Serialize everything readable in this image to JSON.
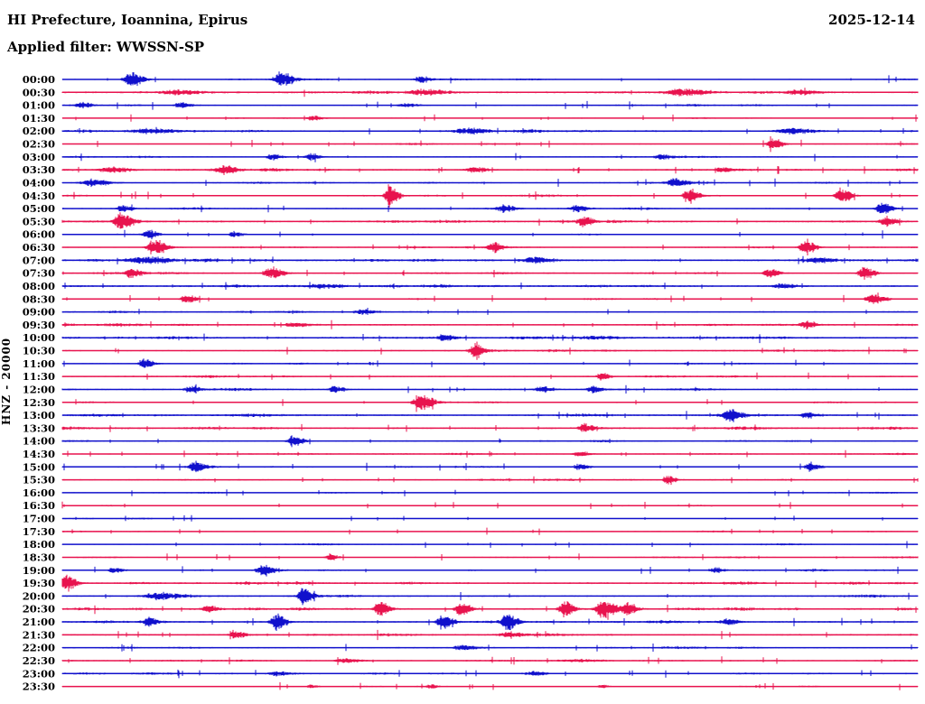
{
  "header": {
    "title": "HI Prefecture, Ioannina, Epirus",
    "date": "2025-12-14",
    "filter_label": "Applied filter: WWSSN-SP"
  },
  "axis": {
    "channel_scale_label": "HNZ - 20000"
  },
  "colors": {
    "trace_blue": "#1010cc",
    "trace_red": "#e8134e",
    "text": "#000000",
    "background": "#ffffff"
  },
  "chart_data": {
    "type": "line",
    "subtype": "helicorder-seismogram",
    "title": "HI Prefecture, Ioannina, Epirus",
    "date": "2025-12-14",
    "filter": "WWSSN-SP",
    "channel": "HNZ",
    "scale": "20000",
    "minutes_per_row": 30,
    "legend_position": "none",
    "grid": false,
    "row_label_axis": "time of day (UTC), one 30-minute trace per row, alternating blue/red",
    "rows": [
      {
        "time": "00:00",
        "color": "blue",
        "noise": 1.1,
        "events": [
          {
            "pos": 0.08,
            "amp": 8,
            "w": 5
          },
          {
            "pos": 0.255,
            "amp": 8,
            "w": 5
          },
          {
            "pos": 0.418,
            "amp": 4,
            "w": 4
          }
        ]
      },
      {
        "time": "00:30",
        "color": "red",
        "noise": 1.9,
        "events": [
          {
            "pos": 0.13,
            "amp": 2.5,
            "w": 9
          },
          {
            "pos": 0.42,
            "amp": 2.5,
            "w": 10
          },
          {
            "pos": 0.72,
            "amp": 2.5,
            "w": 10
          },
          {
            "pos": 0.86,
            "amp": 2.5,
            "w": 8
          }
        ]
      },
      {
        "time": "01:00",
        "color": "blue",
        "noise": 1.1,
        "events": [
          {
            "pos": 0.022,
            "amp": 3.5,
            "w": 4
          },
          {
            "pos": 0.138,
            "amp": 3.5,
            "w": 4
          },
          {
            "pos": 0.4,
            "amp": 2,
            "w": 6
          }
        ]
      },
      {
        "time": "01:30",
        "color": "red",
        "noise": 0.8,
        "events": [
          {
            "pos": 0.292,
            "amp": 3,
            "w": 4
          }
        ]
      },
      {
        "time": "02:00",
        "color": "blue",
        "noise": 1.7,
        "events": [
          {
            "pos": 0.1,
            "amp": 2.5,
            "w": 12
          },
          {
            "pos": 0.47,
            "amp": 2.5,
            "w": 8
          },
          {
            "pos": 0.85,
            "amp": 3,
            "w": 10
          }
        ]
      },
      {
        "time": "02:30",
        "color": "red",
        "noise": 1.0,
        "events": [
          {
            "pos": 0.83,
            "amp": 7,
            "w": 4
          }
        ]
      },
      {
        "time": "03:00",
        "color": "blue",
        "noise": 1.1,
        "events": [
          {
            "pos": 0.245,
            "amp": 3.5,
            "w": 4
          },
          {
            "pos": 0.29,
            "amp": 3.5,
            "w": 4
          },
          {
            "pos": 0.7,
            "amp": 2.5,
            "w": 5
          }
        ]
      },
      {
        "time": "03:30",
        "color": "red",
        "noise": 1.6,
        "events": [
          {
            "pos": 0.055,
            "amp": 3,
            "w": 8
          },
          {
            "pos": 0.19,
            "amp": 3.5,
            "w": 5
          },
          {
            "pos": 0.48,
            "amp": 3,
            "w": 5
          },
          {
            "pos": 0.77,
            "amp": 3,
            "w": 4
          }
        ]
      },
      {
        "time": "04:00",
        "color": "blue",
        "noise": 1.2,
        "events": [
          {
            "pos": 0.034,
            "amp": 3.5,
            "w": 8
          },
          {
            "pos": 0.716,
            "amp": 5,
            "w": 5
          }
        ]
      },
      {
        "time": "04:30",
        "color": "red",
        "noise": 1.3,
        "events": [
          {
            "pos": 0.382,
            "amp": 12,
            "w": 3.5
          },
          {
            "pos": 0.732,
            "amp": 8,
            "w": 4
          },
          {
            "pos": 0.91,
            "amp": 8,
            "w": 4
          }
        ]
      },
      {
        "time": "05:00",
        "color": "blue",
        "noise": 1.2,
        "events": [
          {
            "pos": 0.07,
            "amp": 4,
            "w": 4
          },
          {
            "pos": 0.515,
            "amp": 3.5,
            "w": 5
          },
          {
            "pos": 0.6,
            "amp": 3.5,
            "w": 5
          },
          {
            "pos": 0.958,
            "amp": 7,
            "w": 4
          }
        ]
      },
      {
        "time": "05:30",
        "color": "red",
        "noise": 1.8,
        "events": [
          {
            "pos": 0.068,
            "amp": 9,
            "w": 5
          },
          {
            "pos": 0.608,
            "amp": 6,
            "w": 4
          },
          {
            "pos": 0.962,
            "amp": 5,
            "w": 4
          }
        ]
      },
      {
        "time": "06:00",
        "color": "blue",
        "noise": 0.9,
        "events": [
          {
            "pos": 0.1,
            "amp": 5,
            "w": 4
          },
          {
            "pos": 0.2,
            "amp": 3,
            "w": 4
          }
        ]
      },
      {
        "time": "06:30",
        "color": "red",
        "noise": 1.2,
        "events": [
          {
            "pos": 0.107,
            "amp": 9,
            "w": 5
          },
          {
            "pos": 0.503,
            "amp": 6,
            "w": 4
          },
          {
            "pos": 0.868,
            "amp": 8,
            "w": 4
          }
        ]
      },
      {
        "time": "07:00",
        "color": "blue",
        "noise": 1.9,
        "events": [
          {
            "pos": 0.09,
            "amp": 3,
            "w": 10
          },
          {
            "pos": 0.55,
            "amp": 3,
            "w": 8
          },
          {
            "pos": 0.88,
            "amp": 3,
            "w": 8
          }
        ]
      },
      {
        "time": "07:30",
        "color": "red",
        "noise": 1.4,
        "events": [
          {
            "pos": 0.08,
            "amp": 6,
            "w": 4
          },
          {
            "pos": 0.243,
            "amp": 7,
            "w": 5
          },
          {
            "pos": 0.826,
            "amp": 5,
            "w": 4
          },
          {
            "pos": 0.937,
            "amp": 8,
            "w": 4
          }
        ]
      },
      {
        "time": "08:00",
        "color": "blue",
        "noise": 1.7,
        "events": [
          {
            "pos": 0.3,
            "amp": 2.5,
            "w": 8
          },
          {
            "pos": 0.84,
            "amp": 2.5,
            "w": 6
          }
        ]
      },
      {
        "time": "08:30",
        "color": "red",
        "noise": 1.1,
        "events": [
          {
            "pos": 0.145,
            "amp": 5,
            "w": 4
          },
          {
            "pos": 0.947,
            "amp": 6,
            "w": 5
          }
        ]
      },
      {
        "time": "09:00",
        "color": "blue",
        "noise": 1.2,
        "events": [
          {
            "pos": 0.35,
            "amp": 2.5,
            "w": 6
          }
        ]
      },
      {
        "time": "09:30",
        "color": "red",
        "noise": 1.6,
        "events": [
          {
            "pos": 0.27,
            "amp": 2.5,
            "w": 6
          },
          {
            "pos": 0.868,
            "amp": 4,
            "w": 4
          }
        ]
      },
      {
        "time": "10:00",
        "color": "blue",
        "noise": 2.0,
        "events": [
          {
            "pos": 0.445,
            "amp": 4,
            "w": 4
          }
        ]
      },
      {
        "time": "10:30",
        "color": "red",
        "noise": 1.3,
        "events": [
          {
            "pos": 0.482,
            "amp": 8,
            "w": 4
          }
        ]
      },
      {
        "time": "11:00",
        "color": "blue",
        "noise": 0.9,
        "events": [
          {
            "pos": 0.096,
            "amp": 5,
            "w": 4
          }
        ]
      },
      {
        "time": "11:30",
        "color": "red",
        "noise": 1.3,
        "events": [
          {
            "pos": 0.63,
            "amp": 5,
            "w": 3
          }
        ]
      },
      {
        "time": "12:00",
        "color": "blue",
        "noise": 1.3,
        "events": [
          {
            "pos": 0.15,
            "amp": 3.5,
            "w": 4
          },
          {
            "pos": 0.318,
            "amp": 3.5,
            "w": 4
          },
          {
            "pos": 0.56,
            "amp": 3.5,
            "w": 5
          },
          {
            "pos": 0.62,
            "amp": 3.5,
            "w": 4
          }
        ]
      },
      {
        "time": "12:30",
        "color": "red",
        "noise": 1.2,
        "events": [
          {
            "pos": 0.418,
            "amp": 8,
            "w": 5
          }
        ]
      },
      {
        "time": "13:00",
        "color": "blue",
        "noise": 1.7,
        "events": [
          {
            "pos": 0.778,
            "amp": 6,
            "w": 5
          },
          {
            "pos": 0.87,
            "amp": 3.5,
            "w": 4
          }
        ]
      },
      {
        "time": "13:30",
        "color": "red",
        "noise": 1.6,
        "events": [
          {
            "pos": 0.61,
            "amp": 5,
            "w": 4
          }
        ]
      },
      {
        "time": "14:00",
        "color": "blue",
        "noise": 1.1,
        "events": [
          {
            "pos": 0.27,
            "amp": 6,
            "w": 4
          }
        ]
      },
      {
        "time": "14:30",
        "color": "red",
        "noise": 1.2,
        "events": [
          {
            "pos": 0.604,
            "amp": 3,
            "w": 4
          }
        ]
      },
      {
        "time": "15:00",
        "color": "blue",
        "noise": 1.2,
        "events": [
          {
            "pos": 0.155,
            "amp": 6,
            "w": 4
          },
          {
            "pos": 0.604,
            "amp": 3.5,
            "w": 4
          },
          {
            "pos": 0.874,
            "amp": 5,
            "w": 4
          }
        ]
      },
      {
        "time": "15:30",
        "color": "red",
        "noise": 1.3,
        "events": [
          {
            "pos": 0.708,
            "amp": 5,
            "w": 3
          }
        ]
      },
      {
        "time": "16:00",
        "color": "blue",
        "noise": 0.9,
        "events": []
      },
      {
        "time": "16:30",
        "color": "red",
        "noise": 0.9,
        "events": []
      },
      {
        "time": "17:00",
        "color": "blue",
        "noise": 0.8,
        "events": []
      },
      {
        "time": "17:30",
        "color": "red",
        "noise": 0.9,
        "events": []
      },
      {
        "time": "18:00",
        "color": "blue",
        "noise": 1.0,
        "events": []
      },
      {
        "time": "18:30",
        "color": "red",
        "noise": 1.0,
        "events": [
          {
            "pos": 0.313,
            "amp": 4,
            "w": 3
          }
        ]
      },
      {
        "time": "19:00",
        "color": "blue",
        "noise": 1.2,
        "events": [
          {
            "pos": 0.06,
            "amp": 3,
            "w": 4
          },
          {
            "pos": 0.234,
            "amp": 6,
            "w": 4
          },
          {
            "pos": 0.762,
            "amp": 3,
            "w": 4
          }
        ]
      },
      {
        "time": "19:30",
        "color": "red",
        "noise": 1.7,
        "events": [
          {
            "pos": 0.004,
            "amp": 10,
            "w": 4
          }
        ]
      },
      {
        "time": "20:00",
        "color": "blue",
        "noise": 1.5,
        "events": [
          {
            "pos": 0.11,
            "amp": 3,
            "w": 8
          },
          {
            "pos": 0.282,
            "amp": 9,
            "w": 4
          }
        ]
      },
      {
        "time": "20:30",
        "color": "red",
        "noise": 1.7,
        "events": [
          {
            "pos": 0.17,
            "amp": 4,
            "w": 4
          },
          {
            "pos": 0.371,
            "amp": 8,
            "w": 4
          },
          {
            "pos": 0.466,
            "amp": 8,
            "w": 4
          },
          {
            "pos": 0.587,
            "amp": 9,
            "w": 4
          },
          {
            "pos": 0.632,
            "amp": 11,
            "w": 5
          },
          {
            "pos": 0.66,
            "amp": 7,
            "w": 4
          }
        ]
      },
      {
        "time": "21:00",
        "color": "blue",
        "noise": 1.6,
        "events": [
          {
            "pos": 0.1,
            "amp": 5,
            "w": 3
          },
          {
            "pos": 0.25,
            "amp": 9,
            "w": 4
          },
          {
            "pos": 0.445,
            "amp": 9,
            "w": 4
          },
          {
            "pos": 0.52,
            "amp": 9,
            "w": 4
          },
          {
            "pos": 0.778,
            "amp": 4,
            "w": 4
          }
        ]
      },
      {
        "time": "21:30",
        "color": "red",
        "noise": 1.6,
        "events": [
          {
            "pos": 0.202,
            "amp": 4,
            "w": 4
          },
          {
            "pos": 0.52,
            "amp": 3,
            "w": 6
          }
        ]
      },
      {
        "time": "22:00",
        "color": "blue",
        "noise": 1.3,
        "events": [
          {
            "pos": 0.466,
            "amp": 3,
            "w": 5
          }
        ]
      },
      {
        "time": "22:30",
        "color": "red",
        "noise": 1.3,
        "events": [
          {
            "pos": 0.33,
            "amp": 2.5,
            "w": 6
          }
        ]
      },
      {
        "time": "23:00",
        "color": "blue",
        "noise": 1.3,
        "events": [
          {
            "pos": 0.25,
            "amp": 2.5,
            "w": 6
          },
          {
            "pos": 0.55,
            "amp": 2.5,
            "w": 6
          }
        ]
      },
      {
        "time": "23:30",
        "color": "red",
        "noise": 0.8,
        "events": [
          {
            "pos": 0.29,
            "amp": 2,
            "w": 3
          },
          {
            "pos": 0.43,
            "amp": 2,
            "w": 3
          },
          {
            "pos": 0.63,
            "amp": 2,
            "w": 3
          }
        ]
      }
    ]
  }
}
